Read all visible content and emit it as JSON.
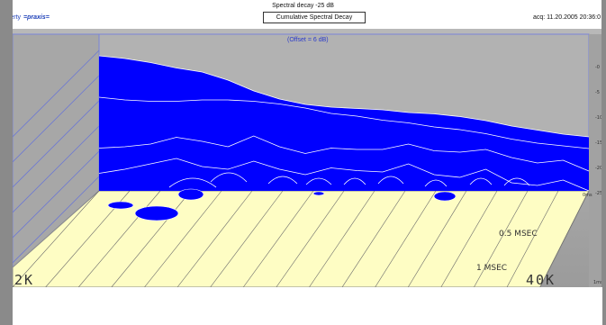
{
  "header": {
    "brand_name": "Liberty",
    "brand_suffix": "=praxis=",
    "title": "Spectral decay -25 dB",
    "subtitle": "Cumulative Spectral Decay",
    "acquisition": "acq: 11.20.2005 20:36:0"
  },
  "chart_data": {
    "type": "area",
    "title": "Spectral decay -25 dB",
    "subtitle": "Cumulative Spectral Decay",
    "offset_label": "(Offset = 6 dB)",
    "x_range_labels": [
      "2K",
      "40K"
    ],
    "time_labels": [
      "0.5 MSEC",
      "1 MSEC"
    ],
    "right_axis_ticks": [
      "-0",
      "-5",
      "-10",
      "-15",
      "-20",
      "-25"
    ],
    "time_axis_short": "0ms",
    "time_axis_short2": "1ms",
    "grid": true,
    "colors": {
      "surface": "#0000ff",
      "floor": "#fefdc4",
      "wall": "#a9a9a9",
      "lines": "#ffffff"
    },
    "series": [
      {
        "values": [
          0.0,
          0.02,
          0.05,
          0.09,
          0.12,
          0.18,
          0.26,
          0.32,
          0.36,
          0.38,
          0.39,
          0.4,
          0.42,
          0.43,
          0.45,
          0.48,
          0.52,
          0.55,
          0.58,
          0.6
        ]
      },
      {
        "values": [
          0.28,
          0.3,
          0.31,
          0.31,
          0.3,
          0.3,
          0.31,
          0.33,
          0.36,
          0.4,
          0.42,
          0.45,
          0.47,
          0.5,
          0.52,
          0.55,
          0.59,
          0.62,
          0.64,
          0.66
        ]
      },
      {
        "values": [
          0.63,
          0.62,
          0.6,
          0.55,
          0.58,
          0.62,
          0.54,
          0.62,
          0.67,
          0.63,
          0.64,
          0.64,
          0.6,
          0.65,
          0.66,
          0.64,
          0.7,
          0.74,
          0.72,
          0.8
        ]
      },
      {
        "values": [
          0.79,
          0.76,
          0.72,
          0.68,
          0.74,
          0.76,
          0.7,
          0.76,
          0.8,
          0.75,
          0.77,
          0.78,
          0.72,
          0.8,
          0.82,
          0.76,
          0.86,
          0.88,
          0.84,
          0.92
        ]
      }
    ]
  }
}
